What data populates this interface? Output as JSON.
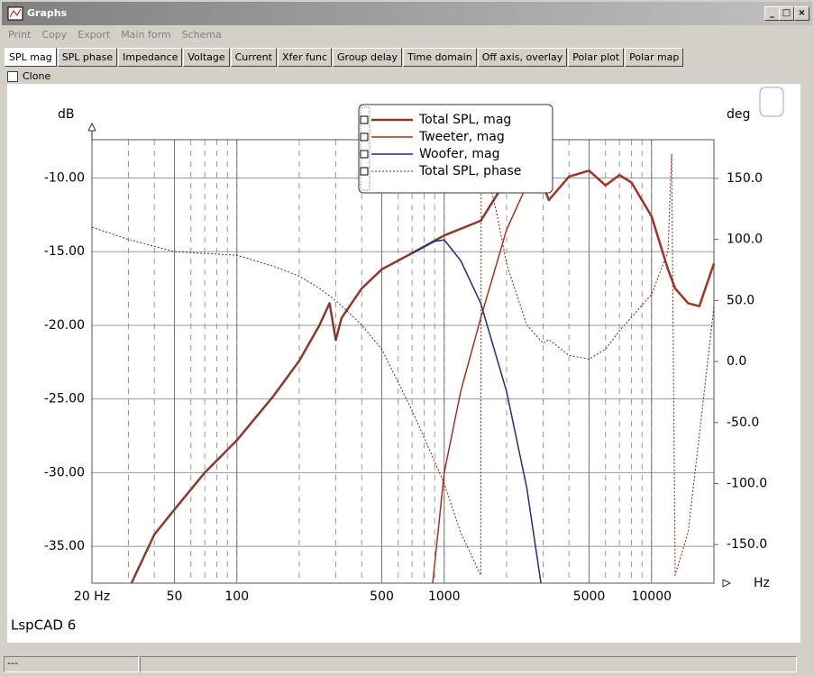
{
  "window": {
    "title": "Graphs",
    "menu": [
      "Print",
      "Copy",
      "Export",
      "Main form",
      "Schema"
    ],
    "tabs": [
      "SPL mag",
      "SPL phase",
      "Impedance",
      "Voltage",
      "Current",
      "Xfer func",
      "Group delay",
      "Time domain",
      "Off axis, overlay",
      "Polar plot",
      "Polar map"
    ],
    "clone": "Clone",
    "footer": "LspCAD 6",
    "status": "---"
  },
  "chart_data": {
    "type": "line",
    "log_x": true,
    "grid": true,
    "y_label": "dB",
    "y2_label": "deg",
    "x_label": "Hz",
    "xlim": [
      20,
      20000
    ],
    "xticks": [
      {
        "value": 20,
        "label": "20 Hz"
      },
      50,
      100,
      500,
      1000,
      5000,
      10000
    ],
    "ylim": [
      -37.5,
      -7.4
    ],
    "yticks": [
      {
        "value": -10,
        "label": "-10.00"
      },
      {
        "value": -15,
        "label": "-15.00"
      },
      {
        "value": -20,
        "label": "-20.00"
      },
      {
        "value": -25,
        "label": "-25.00"
      },
      {
        "value": -30,
        "label": "-30.00"
      },
      {
        "value": -35,
        "label": "-35.00"
      }
    ],
    "y2lim": [
      -181.6,
      181.7
    ],
    "y2ticks": [
      {
        "value": 150,
        "label": "150.0"
      },
      {
        "value": 100,
        "label": "100.0"
      },
      {
        "value": 50,
        "label": "50.0"
      },
      {
        "value": 0,
        "label": "0.0"
      },
      {
        "value": -50,
        "label": "-50.0"
      },
      {
        "value": -100,
        "label": "-100.0"
      },
      {
        "value": -150,
        "label": "-150.0"
      }
    ],
    "series": [
      {
        "name": "Total SPL, mag",
        "color": "#8b3a2a",
        "width": 2.5,
        "x": [
          31,
          40,
          50,
          70,
          100,
          150,
          200,
          250,
          280,
          300,
          320,
          400,
          500,
          700,
          1000,
          1500,
          2000,
          2500,
          3000,
          3200,
          4000,
          5000,
          6000,
          7000,
          8000,
          10000,
          12000,
          13000,
          15000,
          17000,
          20000
        ],
        "values": [
          -37.5,
          -34.2,
          -32.5,
          -30,
          -27.8,
          -24.8,
          -22.4,
          -20,
          -18.5,
          -21,
          -19.5,
          -17.5,
          -16.2,
          -15.1,
          -13.9,
          -12.9,
          -10.1,
          -9.5,
          -10.5,
          -11.5,
          -9.9,
          -9.5,
          -10.5,
          -9.8,
          -10.3,
          -12.6,
          -16.2,
          -17.5,
          -18.5,
          -18.7,
          -15.8
        ]
      },
      {
        "name": "Tweeter, mag",
        "color": "#a8321f",
        "width": 1.5,
        "x": [
          880,
          1000,
          1200,
          1500,
          2000,
          2500,
          3000,
          3200,
          4000,
          5000,
          6000,
          7000,
          8000,
          10000,
          12000,
          13000,
          15000,
          17000,
          20000
        ],
        "values": [
          -37.5,
          -30,
          -24.5,
          -19.5,
          -13.5,
          -10.5,
          -10.6,
          -11.5,
          -9.9,
          -9.5,
          -10.5,
          -9.8,
          -10.3,
          -12.6,
          -16.2,
          -17.5,
          -18.5,
          -18.7,
          -15.8
        ]
      },
      {
        "name": "Woofer, mag",
        "color": "#1f2f80",
        "width": 1.5,
        "x": [
          700,
          900,
          1000,
          1200,
          1500,
          2000,
          2500,
          2930
        ],
        "values": [
          -15.1,
          -14.3,
          -14.2,
          -15.6,
          -18.5,
          -24.5,
          -31,
          -37.5
        ]
      },
      {
        "name": "Total SPL, phase",
        "color": "#8b1a1a",
        "width": 1,
        "style": "dotted",
        "axis": "y2",
        "x": [
          20,
          30,
          50,
          100,
          150,
          200,
          250,
          300,
          400,
          500,
          700,
          1000,
          1200,
          1500,
          1510,
          1800,
          2000,
          2500,
          3000,
          3200,
          4000,
          5000,
          6000,
          7000,
          10000,
          12000,
          12500,
          13000,
          15000,
          17000,
          20000
        ],
        "values": [
          110,
          100,
          90,
          87,
          78,
          70,
          60,
          50,
          30,
          10,
          -40,
          -100,
          -140,
          -175,
          175,
          120,
          80,
          30,
          15,
          18,
          5,
          2,
          10,
          25,
          55,
          90,
          170,
          -175,
          -140,
          -60,
          45
        ]
      }
    ]
  }
}
